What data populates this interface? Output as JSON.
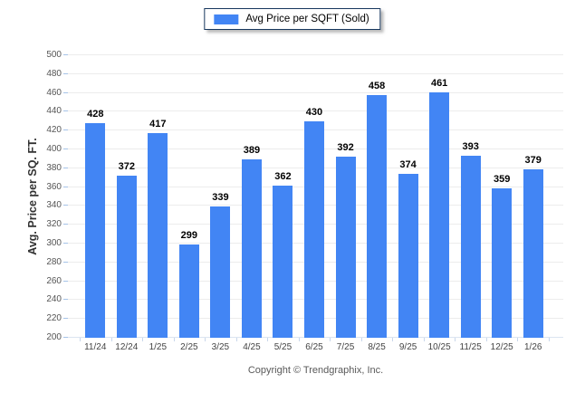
{
  "legend": {
    "label": "Avg Price per SQFT (Sold)"
  },
  "footer": {
    "copyright": "Copyright © Trendgraphix, Inc."
  },
  "colors": {
    "bar": "#4285f4",
    "legend_border": "#17375e",
    "gridline": "#ececec",
    "baseline": "#dbe5f1",
    "y_tick_mark": "#a6c3e8",
    "x_tick_mark": "#c9d7ea"
  },
  "chart_data": {
    "type": "bar",
    "title": "",
    "series_name": "Avg Price per SQFT (Sold)",
    "categories": [
      "11/24",
      "12/24",
      "1/25",
      "2/25",
      "3/25",
      "4/25",
      "5/25",
      "6/25",
      "7/25",
      "8/25",
      "9/25",
      "10/25",
      "11/25",
      "12/25",
      "1/26"
    ],
    "values": [
      428,
      372,
      417,
      299,
      339,
      389,
      362,
      430,
      392,
      458,
      374,
      461,
      393,
      359,
      379
    ],
    "xlabel": "",
    "ylabel": "Avg. Price per SQ. FT.",
    "ylim": [
      200,
      500
    ],
    "ytick_step": 20,
    "grid": true,
    "legend_position": "top",
    "data_labels": true
  }
}
